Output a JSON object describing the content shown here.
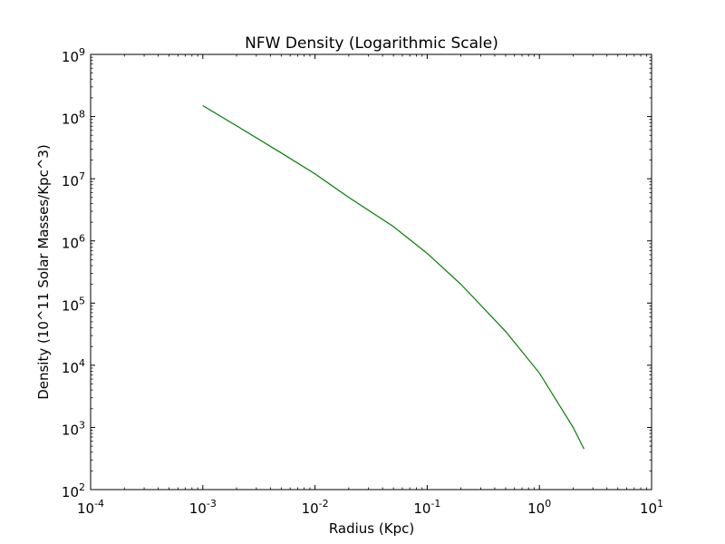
{
  "chart_data": {
    "type": "line",
    "title": "NFW Density (Logarithmic Scale)",
    "xlabel": "Radius (Kpc)",
    "ylabel": "Density (10^11 Solar Masses/Kpc^3)",
    "xscale": "log",
    "yscale": "log",
    "xlim": [
      0.0001,
      10
    ],
    "ylim": [
      100,
      1000000000
    ],
    "grid": false,
    "legend": "none",
    "x_ticks": [
      {
        "value": 0.0001,
        "base": "10",
        "exp": "-4"
      },
      {
        "value": 0.001,
        "base": "10",
        "exp": "-3"
      },
      {
        "value": 0.01,
        "base": "10",
        "exp": "-2"
      },
      {
        "value": 0.1,
        "base": "10",
        "exp": "-1"
      },
      {
        "value": 1,
        "base": "10",
        "exp": "0"
      },
      {
        "value": 10,
        "base": "10",
        "exp": "1"
      }
    ],
    "y_ticks": [
      {
        "value": 100,
        "base": "10",
        "exp": "2"
      },
      {
        "value": 1000,
        "base": "10",
        "exp": "3"
      },
      {
        "value": 10000,
        "base": "10",
        "exp": "4"
      },
      {
        "value": 100000,
        "base": "10",
        "exp": "5"
      },
      {
        "value": 1000000,
        "base": "10",
        "exp": "6"
      },
      {
        "value": 10000000,
        "base": "10",
        "exp": "7"
      },
      {
        "value": 100000000,
        "base": "10",
        "exp": "8"
      },
      {
        "value": 1000000000,
        "base": "10",
        "exp": "9"
      }
    ],
    "series": [
      {
        "color": "#008000",
        "x": [
          0.001,
          0.002,
          0.005,
          0.01,
          0.02,
          0.05,
          0.1,
          0.2,
          0.5,
          1.0,
          2.0,
          2.5
        ],
        "y": [
          150000000,
          71000000,
          26000000,
          12000000,
          5000000,
          1700000,
          630000,
          200000,
          35000,
          7500,
          1000,
          450
        ]
      }
    ]
  }
}
